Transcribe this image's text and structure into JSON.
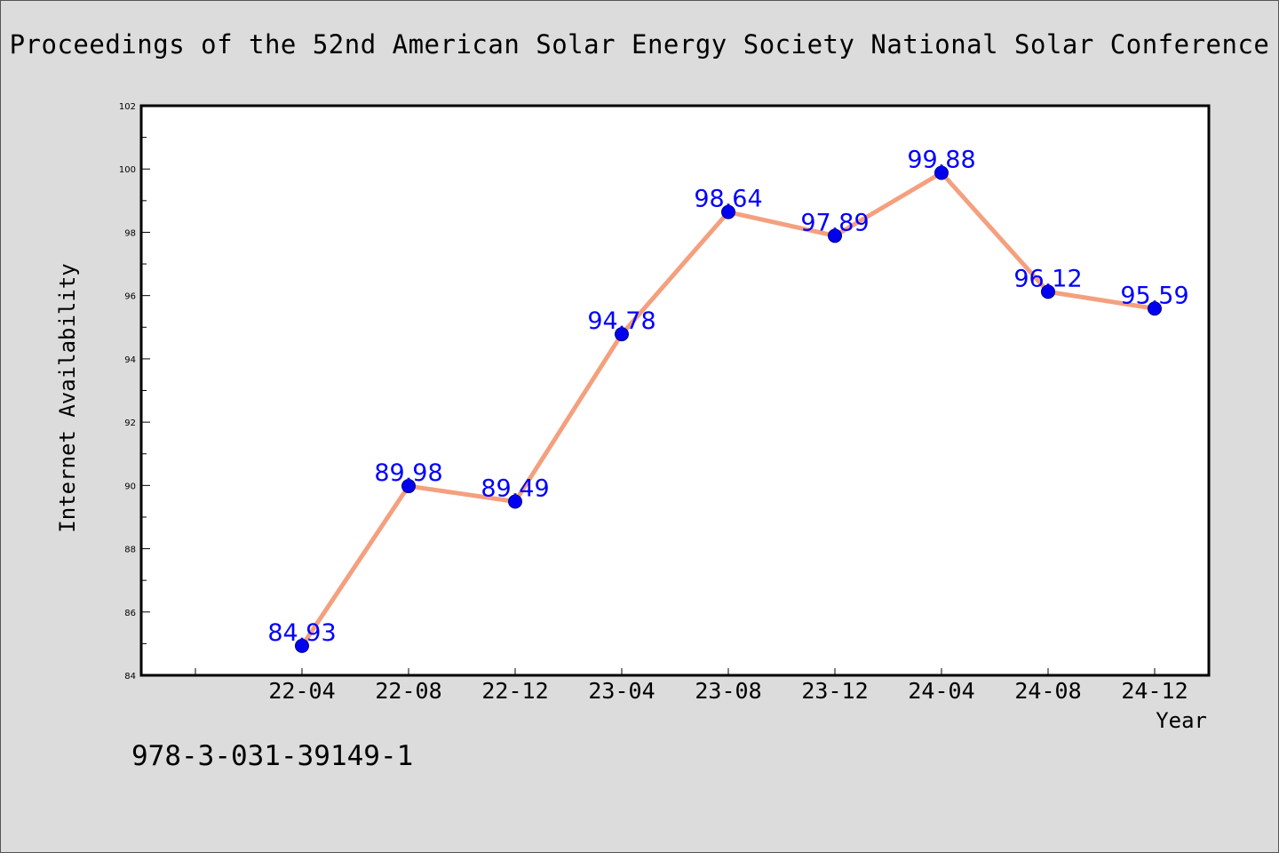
{
  "header": {
    "title": "Proceedings of the 52nd American Solar Energy Society National Solar Conference"
  },
  "footer": {
    "isbn": "978-3-031-39149-1"
  },
  "colors": {
    "background": "#dcdcdc",
    "plot_background": "#ffffff",
    "line": "#f4a07e",
    "marker": "#0000ee",
    "data_label": "#0000ff"
  },
  "chart_data": {
    "type": "line",
    "title": "Proceedings of the 52nd American Solar Energy Society National Solar Conference",
    "xlabel": "Year",
    "ylabel": "Internet Availability",
    "categories": [
      "22-04",
      "22-08",
      "22-12",
      "23-04",
      "23-08",
      "23-12",
      "24-04",
      "24-08",
      "24-12"
    ],
    "series": [
      {
        "values": [
          84.93,
          89.98,
          89.49,
          94.78,
          98.64,
          97.89,
          99.88,
          96.12,
          95.59
        ],
        "data_labels": [
          "84.93",
          "89.98",
          "89.49",
          "94.78",
          "98.64",
          "97.89",
          "99.88",
          "96.12",
          "95.59"
        ]
      }
    ],
    "ylim": [
      84,
      102
    ],
    "yticks": [
      "84",
      "86",
      "88",
      "90",
      "92",
      "94",
      "96",
      "98",
      "100",
      "102"
    ],
    "grid": false,
    "legend": "none"
  }
}
